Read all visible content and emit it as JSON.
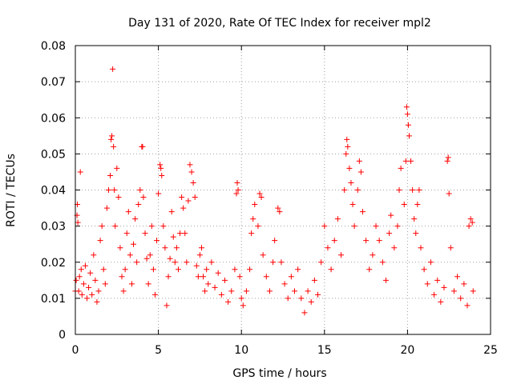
{
  "chart_data": {
    "type": "scatter",
    "title": "Day 131 of 2020, Rate Of TEC Index for receiver mpl2",
    "xlabel": "GPS time / hours",
    "ylabel": "ROTI / TECUs",
    "xlim": [
      0,
      25
    ],
    "ylim": [
      0,
      0.08
    ],
    "x_ticks": [
      0,
      5,
      10,
      15,
      20,
      25
    ],
    "x_tick_labels": [
      "0",
      "5",
      "10",
      "15",
      "20",
      "25"
    ],
    "y_ticks": [
      0,
      0.01,
      0.02,
      0.03,
      0.04,
      0.05,
      0.06,
      0.07,
      0.08
    ],
    "y_tick_labels": [
      "0",
      "0.01",
      "0.02",
      "0.03",
      "0.04",
      "0.05",
      "0.06",
      "0.07",
      "0.08"
    ],
    "grid": true,
    "marker": "plus",
    "series": [
      {
        "color": "#ff0000",
        "points": [
          [
            0.0,
            0.012
          ],
          [
            0.05,
            0.015
          ],
          [
            0.1,
            0.033
          ],
          [
            0.12,
            0.036
          ],
          [
            0.15,
            0.031
          ],
          [
            0.2,
            0.012
          ],
          [
            0.25,
            0.016
          ],
          [
            0.3,
            0.045
          ],
          [
            0.35,
            0.018
          ],
          [
            0.4,
            0.011
          ],
          [
            0.5,
            0.014
          ],
          [
            0.6,
            0.019
          ],
          [
            0.7,
            0.01
          ],
          [
            0.8,
            0.013
          ],
          [
            0.9,
            0.017
          ],
          [
            1.0,
            0.011
          ],
          [
            1.1,
            0.022
          ],
          [
            1.2,
            0.015
          ],
          [
            1.3,
            0.009
          ],
          [
            1.4,
            0.012
          ],
          [
            1.5,
            0.026
          ],
          [
            1.6,
            0.03
          ],
          [
            1.7,
            0.018
          ],
          [
            1.8,
            0.014
          ],
          [
            1.9,
            0.035
          ],
          [
            2.0,
            0.04
          ],
          [
            2.1,
            0.044
          ],
          [
            2.15,
            0.054
          ],
          [
            2.2,
            0.055
          ],
          [
            2.25,
            0.0735
          ],
          [
            2.3,
            0.052
          ],
          [
            2.35,
            0.04
          ],
          [
            2.4,
            0.03
          ],
          [
            2.5,
            0.046
          ],
          [
            2.6,
            0.038
          ],
          [
            2.7,
            0.024
          ],
          [
            2.8,
            0.016
          ],
          [
            2.9,
            0.012
          ],
          [
            3.0,
            0.018
          ],
          [
            3.1,
            0.028
          ],
          [
            3.2,
            0.034
          ],
          [
            3.3,
            0.022
          ],
          [
            3.4,
            0.014
          ],
          [
            3.5,
            0.025
          ],
          [
            3.6,
            0.032
          ],
          [
            3.7,
            0.02
          ],
          [
            3.8,
            0.036
          ],
          [
            3.9,
            0.04
          ],
          [
            4.0,
            0.052
          ],
          [
            4.05,
            0.052
          ],
          [
            4.1,
            0.038
          ],
          [
            4.2,
            0.028
          ],
          [
            4.3,
            0.021
          ],
          [
            4.4,
            0.014
          ],
          [
            4.5,
            0.022
          ],
          [
            4.6,
            0.03
          ],
          [
            4.7,
            0.018
          ],
          [
            4.8,
            0.011
          ],
          [
            4.9,
            0.026
          ],
          [
            5.0,
            0.039
          ],
          [
            5.1,
            0.047
          ],
          [
            5.15,
            0.046
          ],
          [
            5.2,
            0.044
          ],
          [
            5.3,
            0.03
          ],
          [
            5.4,
            0.024
          ],
          [
            5.5,
            0.008
          ],
          [
            5.6,
            0.016
          ],
          [
            5.7,
            0.021
          ],
          [
            5.8,
            0.034
          ],
          [
            5.9,
            0.027
          ],
          [
            6.0,
            0.02
          ],
          [
            6.1,
            0.024
          ],
          [
            6.2,
            0.018
          ],
          [
            6.3,
            0.028
          ],
          [
            6.4,
            0.038
          ],
          [
            6.5,
            0.035
          ],
          [
            6.6,
            0.028
          ],
          [
            6.7,
            0.02
          ],
          [
            6.8,
            0.037
          ],
          [
            6.9,
            0.047
          ],
          [
            7.0,
            0.045
          ],
          [
            7.1,
            0.042
          ],
          [
            7.2,
            0.038
          ],
          [
            7.3,
            0.019
          ],
          [
            7.4,
            0.016
          ],
          [
            7.5,
            0.022
          ],
          [
            7.6,
            0.024
          ],
          [
            7.7,
            0.016
          ],
          [
            7.8,
            0.012
          ],
          [
            7.9,
            0.018
          ],
          [
            8.0,
            0.014
          ],
          [
            8.2,
            0.02
          ],
          [
            8.4,
            0.013
          ],
          [
            8.6,
            0.017
          ],
          [
            8.8,
            0.011
          ],
          [
            9.0,
            0.015
          ],
          [
            9.2,
            0.009
          ],
          [
            9.4,
            0.012
          ],
          [
            9.6,
            0.018
          ],
          [
            9.7,
            0.039
          ],
          [
            9.75,
            0.042
          ],
          [
            9.8,
            0.04
          ],
          [
            9.9,
            0.016
          ],
          [
            10.0,
            0.01
          ],
          [
            10.1,
            0.008
          ],
          [
            10.3,
            0.012
          ],
          [
            10.5,
            0.018
          ],
          [
            10.6,
            0.028
          ],
          [
            10.7,
            0.032
          ],
          [
            10.8,
            0.036
          ],
          [
            11.0,
            0.03
          ],
          [
            11.1,
            0.039
          ],
          [
            11.2,
            0.038
          ],
          [
            11.3,
            0.022
          ],
          [
            11.5,
            0.016
          ],
          [
            11.7,
            0.012
          ],
          [
            11.9,
            0.02
          ],
          [
            12.0,
            0.026
          ],
          [
            12.2,
            0.035
          ],
          [
            12.3,
            0.034
          ],
          [
            12.4,
            0.02
          ],
          [
            12.6,
            0.014
          ],
          [
            12.8,
            0.01
          ],
          [
            13.0,
            0.016
          ],
          [
            13.2,
            0.012
          ],
          [
            13.4,
            0.018
          ],
          [
            13.6,
            0.01
          ],
          [
            13.8,
            0.006
          ],
          [
            14.0,
            0.012
          ],
          [
            14.2,
            0.009
          ],
          [
            14.4,
            0.015
          ],
          [
            14.6,
            0.011
          ],
          [
            14.8,
            0.02
          ],
          [
            15.0,
            0.03
          ],
          [
            15.2,
            0.024
          ],
          [
            15.4,
            0.018
          ],
          [
            15.6,
            0.026
          ],
          [
            15.8,
            0.032
          ],
          [
            16.0,
            0.022
          ],
          [
            16.2,
            0.04
          ],
          [
            16.3,
            0.05
          ],
          [
            16.35,
            0.054
          ],
          [
            16.4,
            0.052
          ],
          [
            16.5,
            0.046
          ],
          [
            16.6,
            0.042
          ],
          [
            16.7,
            0.036
          ],
          [
            16.8,
            0.03
          ],
          [
            17.0,
            0.04
          ],
          [
            17.1,
            0.048
          ],
          [
            17.2,
            0.045
          ],
          [
            17.3,
            0.034
          ],
          [
            17.5,
            0.026
          ],
          [
            17.7,
            0.018
          ],
          [
            17.9,
            0.022
          ],
          [
            18.1,
            0.03
          ],
          [
            18.3,
            0.026
          ],
          [
            18.5,
            0.02
          ],
          [
            18.7,
            0.015
          ],
          [
            18.9,
            0.028
          ],
          [
            19.0,
            0.033
          ],
          [
            19.2,
            0.024
          ],
          [
            19.4,
            0.03
          ],
          [
            19.5,
            0.04
          ],
          [
            19.6,
            0.046
          ],
          [
            19.8,
            0.036
          ],
          [
            19.9,
            0.048
          ],
          [
            19.95,
            0.063
          ],
          [
            20.0,
            0.061
          ],
          [
            20.05,
            0.058
          ],
          [
            20.1,
            0.055
          ],
          [
            20.2,
            0.048
          ],
          [
            20.3,
            0.04
          ],
          [
            20.4,
            0.032
          ],
          [
            20.5,
            0.028
          ],
          [
            20.6,
            0.036
          ],
          [
            20.7,
            0.04
          ],
          [
            20.8,
            0.024
          ],
          [
            21.0,
            0.018
          ],
          [
            21.2,
            0.014
          ],
          [
            21.4,
            0.02
          ],
          [
            21.6,
            0.011
          ],
          [
            21.8,
            0.015
          ],
          [
            22.0,
            0.009
          ],
          [
            22.2,
            0.013
          ],
          [
            22.4,
            0.048
          ],
          [
            22.45,
            0.049
          ],
          [
            22.5,
            0.039
          ],
          [
            22.6,
            0.024
          ],
          [
            22.8,
            0.012
          ],
          [
            23.0,
            0.016
          ],
          [
            23.2,
            0.01
          ],
          [
            23.4,
            0.014
          ],
          [
            23.6,
            0.008
          ],
          [
            23.7,
            0.03
          ],
          [
            23.8,
            0.032
          ],
          [
            23.9,
            0.031
          ],
          [
            23.95,
            0.012
          ]
        ]
      }
    ]
  }
}
